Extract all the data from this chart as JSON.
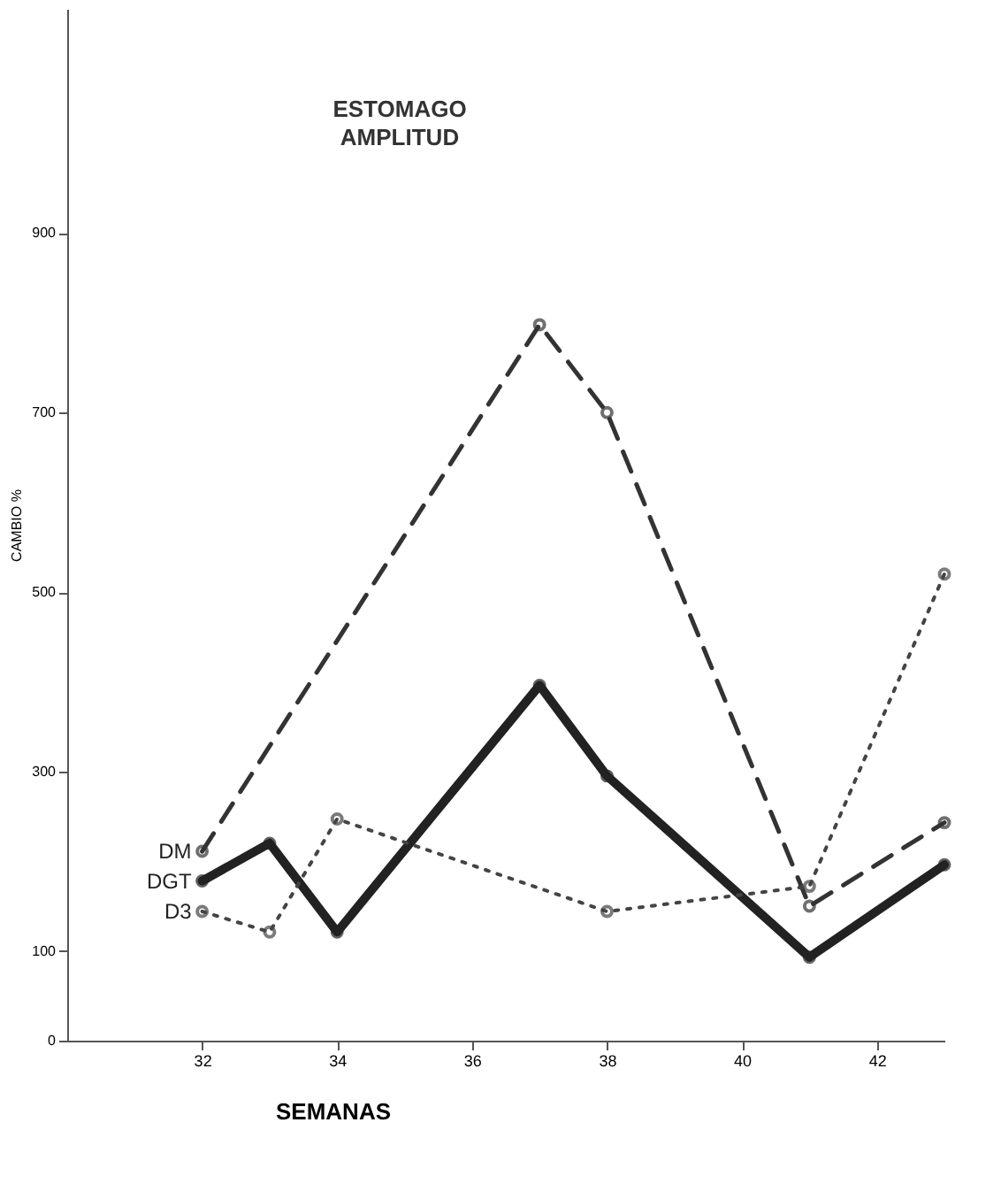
{
  "chart_data": {
    "type": "line",
    "title": "ESTOMAGO",
    "subtitle": "AMPLITUD",
    "xlabel": "SEMANAS",
    "ylabel": "CAMBIO %",
    "xlim": [
      30,
      43
    ],
    "xticks": [
      32,
      34,
      36,
      38,
      40,
      42
    ],
    "ylim": [
      0,
      1150
    ],
    "yticks": [
      0,
      100,
      300,
      500,
      700,
      900
    ],
    "grid": false,
    "marker": "circle",
    "series": [
      {
        "name": "DM",
        "color": "#333333",
        "line_style": "dashed",
        "x": [
          32,
          37,
          38,
          41,
          43
        ],
        "values": [
          211,
          798,
          700,
          150,
          243
        ]
      },
      {
        "name": "DGT",
        "color": "#222222",
        "line_style": "solid",
        "x": [
          32,
          33,
          34,
          37,
          38,
          41,
          43
        ],
        "values": [
          178,
          220,
          121,
          396,
          295,
          93,
          196
        ]
      },
      {
        "name": "D3",
        "color": "#444444",
        "line_style": "dotted",
        "x": [
          32,
          33,
          34,
          38,
          41,
          43
        ],
        "values": [
          144,
          121,
          247,
          144,
          172,
          520
        ]
      }
    ]
  }
}
